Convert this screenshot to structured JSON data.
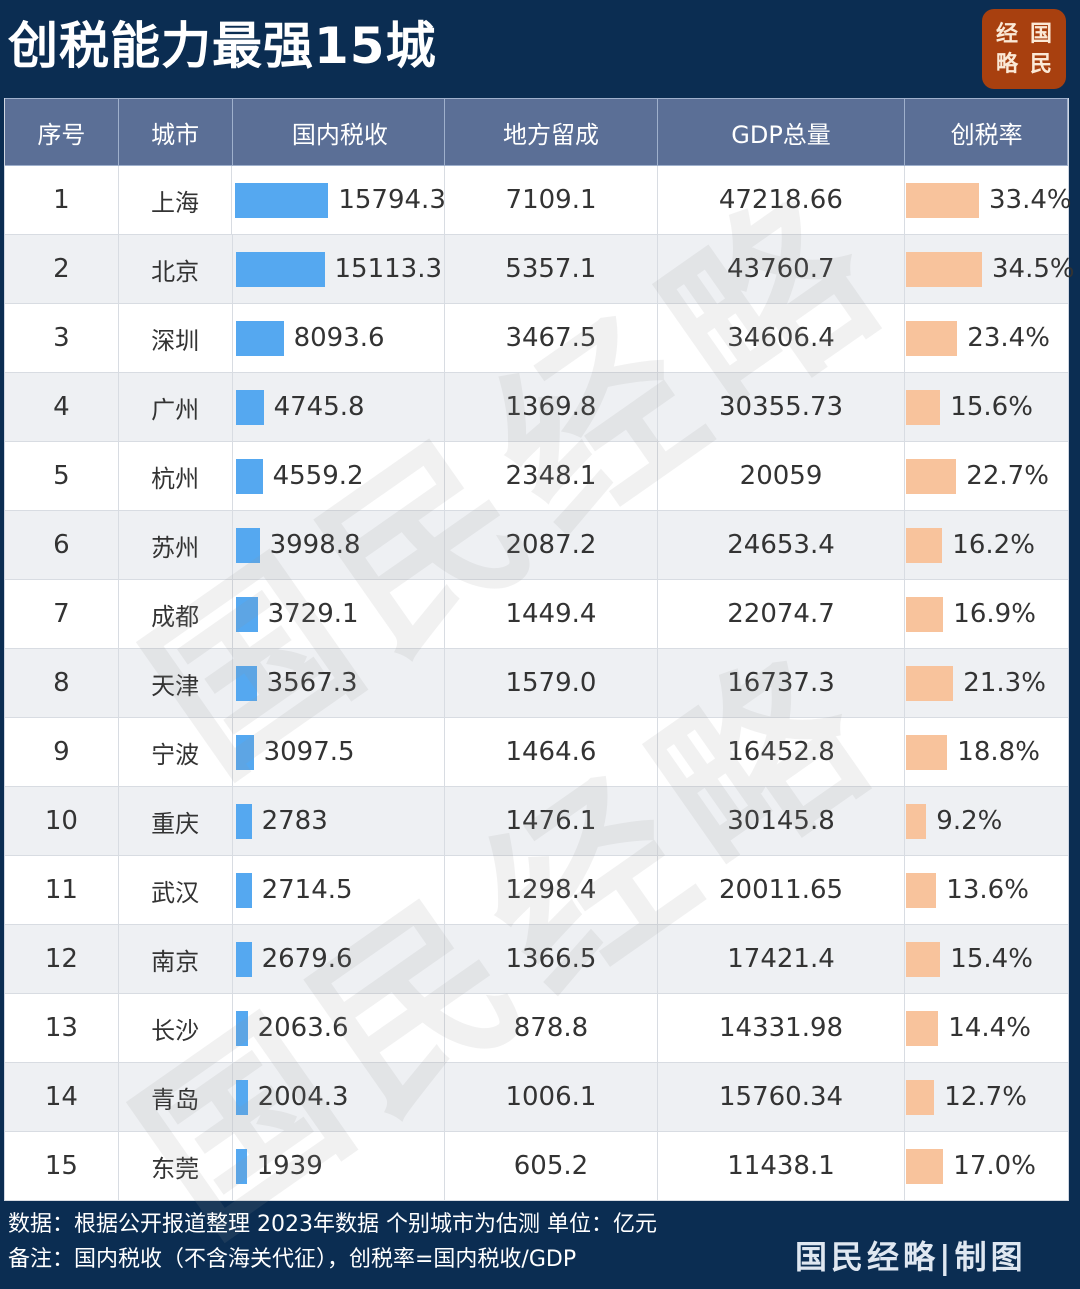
{
  "header": {
    "title": "创税能力最强15城",
    "logo_chars": [
      "经",
      "国",
      "略",
      "民"
    ]
  },
  "table": {
    "columns": [
      "序号",
      "城市",
      "国内税收",
      "地方留成",
      "GDP总量",
      "创税率"
    ],
    "rows": [
      {
        "rank": "1",
        "city": "上海",
        "tax": "15794.3",
        "local": "7109.1",
        "gdp": "47218.66",
        "rate": "33.4%"
      },
      {
        "rank": "2",
        "city": "北京",
        "tax": "15113.3",
        "local": "5357.1",
        "gdp": "43760.7",
        "rate": "34.5%"
      },
      {
        "rank": "3",
        "city": "深圳",
        "tax": "8093.6",
        "local": "3467.5",
        "gdp": "34606.4",
        "rate": "23.4%"
      },
      {
        "rank": "4",
        "city": "广州",
        "tax": "4745.8",
        "local": "1369.8",
        "gdp": "30355.73",
        "rate": "15.6%"
      },
      {
        "rank": "5",
        "city": "杭州",
        "tax": "4559.2",
        "local": "2348.1",
        "gdp": "20059",
        "rate": "22.7%"
      },
      {
        "rank": "6",
        "city": "苏州",
        "tax": "3998.8",
        "local": "2087.2",
        "gdp": "24653.4",
        "rate": "16.2%"
      },
      {
        "rank": "7",
        "city": "成都",
        "tax": "3729.1",
        "local": "1449.4",
        "gdp": "22074.7",
        "rate": "16.9%"
      },
      {
        "rank": "8",
        "city": "天津",
        "tax": "3567.3",
        "local": "1579.0",
        "gdp": "16737.3",
        "rate": "21.3%"
      },
      {
        "rank": "9",
        "city": "宁波",
        "tax": "3097.5",
        "local": "1464.6",
        "gdp": "16452.8",
        "rate": "18.8%"
      },
      {
        "rank": "10",
        "city": "重庆",
        "tax": "2783",
        "local": "1476.1",
        "gdp": "30145.8",
        "rate": "9.2%"
      },
      {
        "rank": "11",
        "city": "武汉",
        "tax": "2714.5",
        "local": "1298.4",
        "gdp": "20011.65",
        "rate": "13.6%"
      },
      {
        "rank": "12",
        "city": "南京",
        "tax": "2679.6",
        "local": "1366.5",
        "gdp": "17421.4",
        "rate": "15.4%"
      },
      {
        "rank": "13",
        "city": "长沙",
        "tax": "2063.6",
        "local": "878.8",
        "gdp": "14331.98",
        "rate": "14.4%"
      },
      {
        "rank": "14",
        "city": "青岛",
        "tax": "2004.3",
        "local": "1006.1",
        "gdp": "15760.34",
        "rate": "12.7%"
      },
      {
        "rank": "15",
        "city": "东莞",
        "tax": "1939",
        "local": "605.2",
        "gdp": "11438.1",
        "rate": "17.0%"
      }
    ]
  },
  "watermark": {
    "text_a": "国民经略",
    "text_b": "国民经略"
  },
  "footer": {
    "source": "数据：根据公开报道整理 2023年数据 个别城市为估测  单位：亿元",
    "note": "备注：国内税收（不含海关代征），创税率=国内税收/GDP",
    "brand": "国民经略|制图"
  },
  "colors": {
    "background": "#0b2d52",
    "header_bg": "#5b6f96",
    "tax_bar": "#55a8f0",
    "rate_bar": "#f8c39c",
    "logo_bg": "#a8400f",
    "row_alt": "#eef0f3"
  },
  "chart_data": {
    "type": "table",
    "title": "创税能力最强15城",
    "unit": "亿元",
    "columns": [
      "序号",
      "城市",
      "国内税收",
      "地方留成",
      "GDP总量",
      "创税率"
    ],
    "categories": [
      "上海",
      "北京",
      "深圳",
      "广州",
      "杭州",
      "苏州",
      "成都",
      "天津",
      "宁波",
      "重庆",
      "武汉",
      "南京",
      "长沙",
      "青岛",
      "东莞"
    ],
    "series": [
      {
        "name": "国内税收",
        "values": [
          15794.3,
          15113.3,
          8093.6,
          4745.8,
          4559.2,
          3998.8,
          3729.1,
          3567.3,
          3097.5,
          2783,
          2714.5,
          2679.6,
          2063.6,
          2004.3,
          1939
        ],
        "display": "inline-bar",
        "color": "#55a8f0"
      },
      {
        "name": "地方留成",
        "values": [
          7109.1,
          5357.1,
          3467.5,
          1369.8,
          2348.1,
          2087.2,
          1449.4,
          1579.0,
          1464.6,
          1476.1,
          1298.4,
          1366.5,
          878.8,
          1006.1,
          605.2
        ]
      },
      {
        "name": "GDP总量",
        "values": [
          47218.66,
          43760.7,
          34606.4,
          30355.73,
          20059,
          24653.4,
          22074.7,
          16737.3,
          16452.8,
          30145.8,
          20011.65,
          17421.4,
          14331.98,
          15760.34,
          11438.1
        ]
      },
      {
        "name": "创税率",
        "values": [
          33.4,
          34.5,
          23.4,
          15.6,
          22.7,
          16.2,
          16.9,
          21.3,
          18.8,
          9.2,
          13.6,
          15.4,
          14.4,
          12.7,
          17.0
        ],
        "unit": "%",
        "display": "inline-bar",
        "color": "#f8c39c"
      }
    ],
    "notes": [
      "数据：根据公开报道整理 2023年数据 个别城市为估测  单位：亿元",
      "备注：国内税收（不含海关代征），创税率=国内税收/GDP"
    ]
  }
}
